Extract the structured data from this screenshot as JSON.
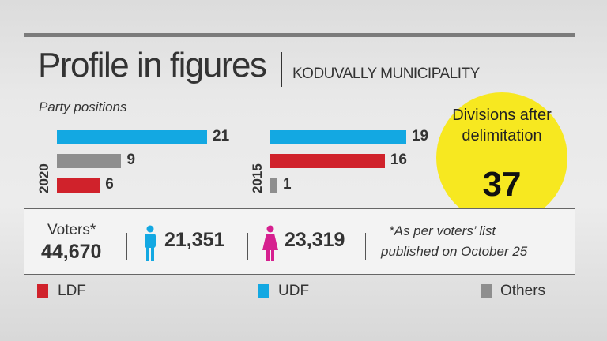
{
  "header": {
    "title": "Profile in figures",
    "subtitle": "KODUVALLY MUNICIPALITY"
  },
  "colors": {
    "LDF": "#d0222b",
    "UDF": "#13a8e2",
    "Others": "#8e8e8e",
    "highlight": "#f7e820"
  },
  "chart_data": {
    "type": "bar",
    "title": "Party positions",
    "orientation": "horizontal",
    "groups": [
      {
        "year": "2020",
        "bars": [
          {
            "party": "UDF",
            "value": 21
          },
          {
            "party": "Others",
            "value": 9
          },
          {
            "party": "LDF",
            "value": 6
          }
        ]
      },
      {
        "year": "2015",
        "bars": [
          {
            "party": "UDF",
            "value": 19
          },
          {
            "party": "LDF",
            "value": 16
          },
          {
            "party": "Others",
            "value": 1
          }
        ]
      }
    ],
    "legend": [
      "LDF",
      "UDF",
      "Others"
    ]
  },
  "divisions": {
    "label": "Divisions after delimitation",
    "value": "37"
  },
  "voters": {
    "label": "Voters*",
    "total": "44,670",
    "male": "21,351",
    "female": "23,319",
    "note_line1": "*As per voters’ list",
    "note_line2": "published on October 25"
  },
  "legend": {
    "ldf": "LDF",
    "udf": "UDF",
    "others": "Others"
  }
}
